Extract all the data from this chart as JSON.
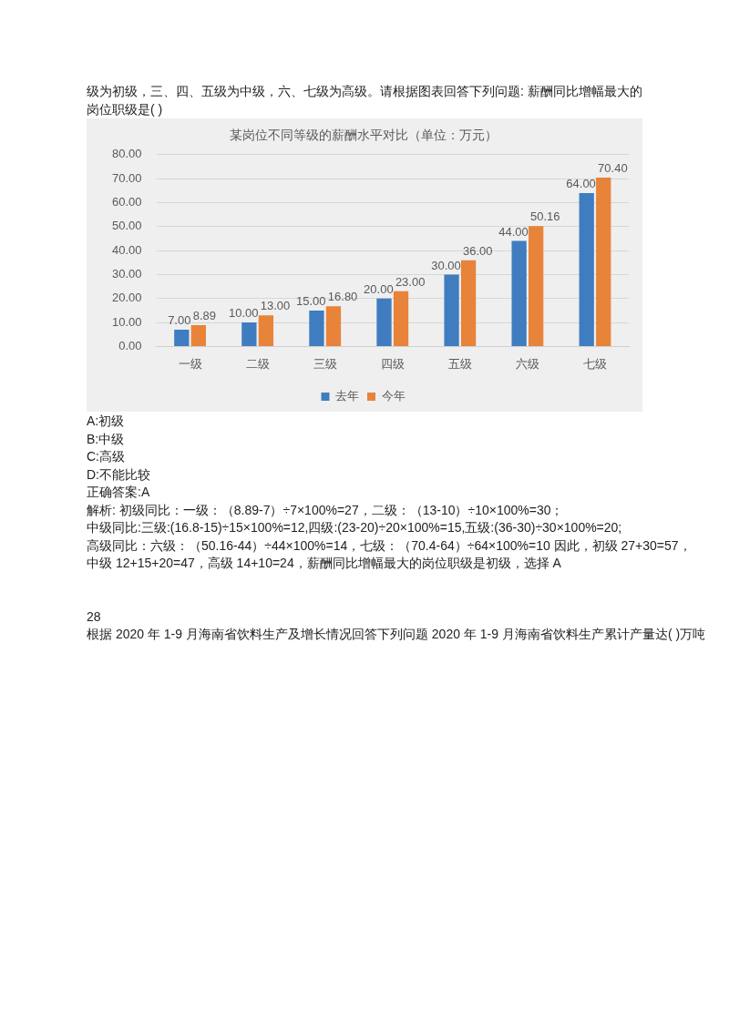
{
  "chart_data": {
    "type": "bar",
    "title": "某岗位不同等级的薪酬水平对比（单位：万元）",
    "subtitle": "级为初级，三、四、五级为中级，六、七级为高级。请根据图表回答下列问题: 薪酬同比增幅最大的岗位职级是( )",
    "categories": [
      "一级",
      "二级",
      "三级",
      "四级",
      "五级",
      "六级",
      "七级"
    ],
    "series": [
      {
        "name": "去年",
        "color": "#3f7dc0",
        "values": [
          7,
          10,
          15,
          20,
          30,
          44,
          64
        ],
        "value_labels": [
          "7.00",
          "10.00",
          "15.00",
          "20.00",
          "30.00",
          "44.00",
          "64.00"
        ]
      },
      {
        "name": "今年",
        "color": "#e8833a",
        "values": [
          8.89,
          13,
          16.8,
          23,
          36,
          50.16,
          70.4
        ],
        "value_labels": [
          "8.89",
          "13.00",
          "16.80",
          "23.00",
          "36.00",
          "50.16",
          "70.40"
        ]
      }
    ],
    "ylim": [
      0,
      80
    ],
    "yticks": [
      {
        "value": 0,
        "label": "0.00"
      },
      {
        "value": 10,
        "label": "10.00"
      },
      {
        "value": 20,
        "label": "20.00"
      },
      {
        "value": 30,
        "label": "30.00"
      },
      {
        "value": 40,
        "label": "40.00"
      },
      {
        "value": 50,
        "label": "50.00"
      },
      {
        "value": 60,
        "label": "60.00"
      },
      {
        "value": 70,
        "label": "70.00"
      },
      {
        "value": 80,
        "label": "80.00"
      }
    ],
    "grid": "y",
    "legend": "bottom",
    "annotations": [
      "A:初级",
      "B:中级",
      "C:高级",
      "D:不能比较",
      "正确答案:A",
      "解析: 初级同比：一级：（8.89-7）÷7×100%=27，二级：（13-10）÷10×100%=30；",
      "中级同比:三级:(16.8-15)÷15×100%=12,四级:(23-20)÷20×100%=15,五级:(36-30)÷30×100%=20;",
      "高级同比：六级：（50.16-44）÷44×100%=14，七级：（70.4-64）÷64×100%=10 因此，初级 27+30=57，",
      "中级 12+15+20=47，高级 14+10=24，薪酬同比增幅最大的岗位职级是初级，选择 A",
      "28",
      "根据 2020 年 1-9 月海南省饮料生产及增长情况回答下列问题 2020 年 1-9 月海南省饮料生产累计产量达( )万吨"
    ]
  }
}
